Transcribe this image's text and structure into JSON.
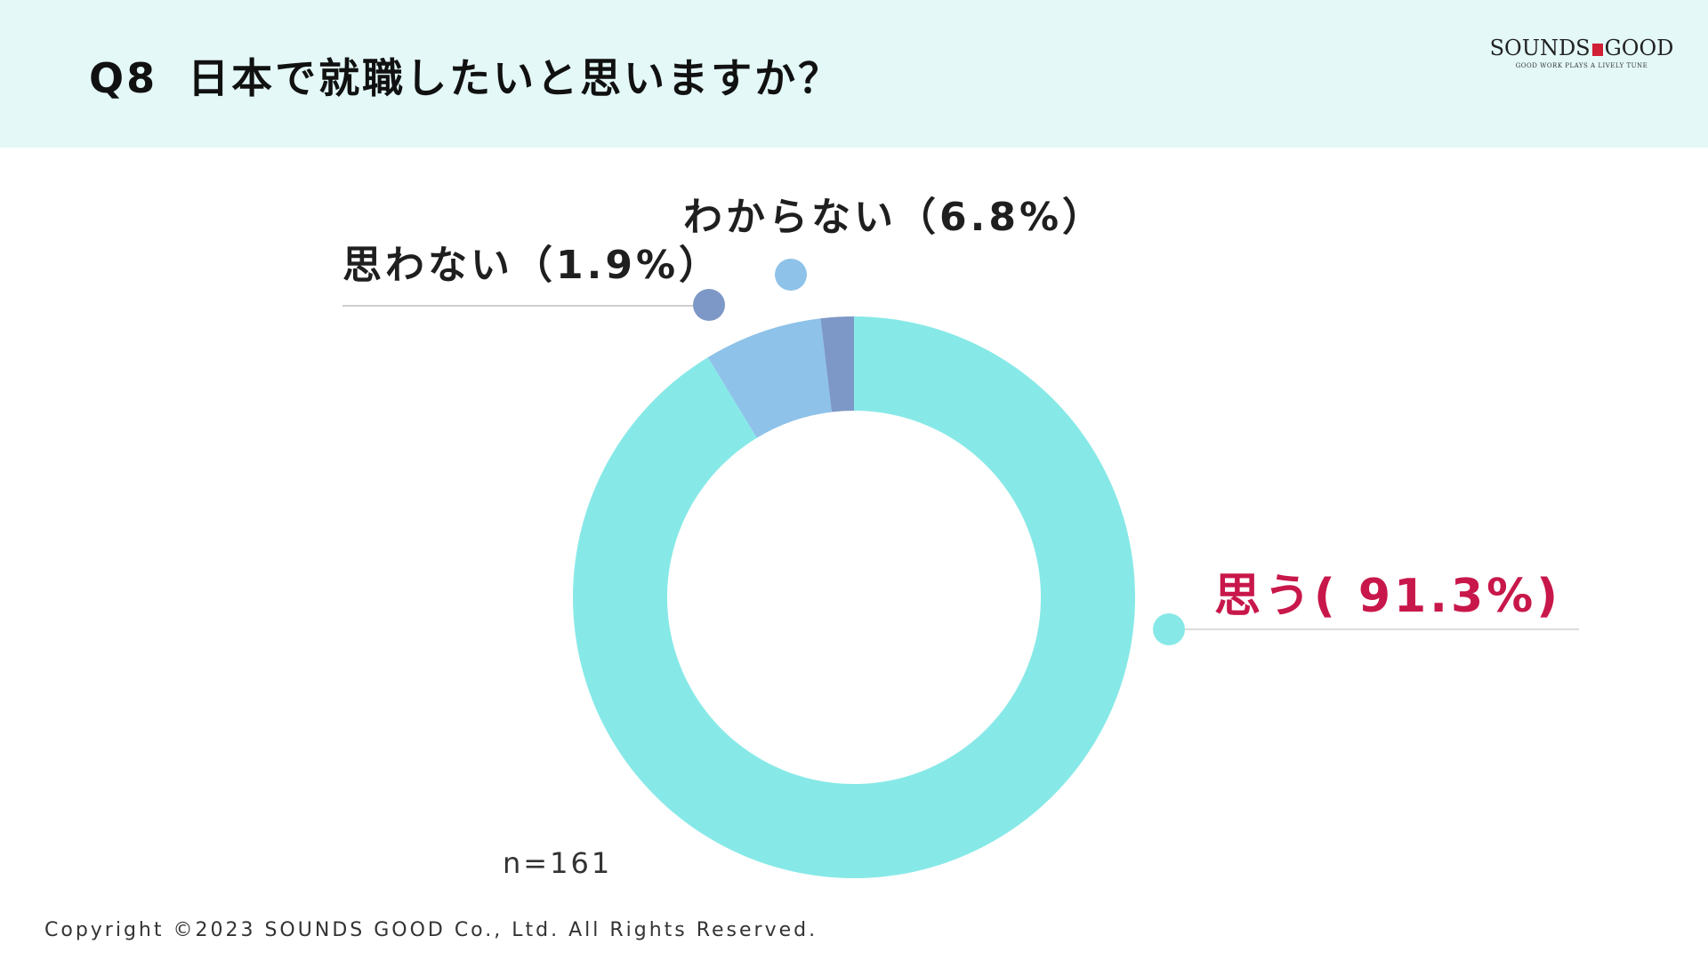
{
  "header": {
    "question_number": "Q8",
    "question_text": "日本で就職したいと思いますか？"
  },
  "logo": {
    "name_left": "SOUNDS",
    "name_right": "GOOD",
    "tagline": "GOOD WORK PLAYS A LIVELY TUNE"
  },
  "chart_data": {
    "type": "pie",
    "variant": "donut",
    "slices": [
      {
        "label": "思う( 91.3%)",
        "value": 91.3,
        "color": "#87e9e7"
      },
      {
        "label": "わからない（6.8%）",
        "value": 6.8,
        "color": "#8ec2e9"
      },
      {
        "label": "思わない（1.9%）",
        "value": 1.9,
        "color": "#7d98c6"
      }
    ],
    "sample_size": "n=161",
    "highlight_color": "#c8174a"
  },
  "footer": {
    "copyright": "Copyright ©2023 SOUNDS GOOD Co., Ltd. All Rights Reserved."
  }
}
